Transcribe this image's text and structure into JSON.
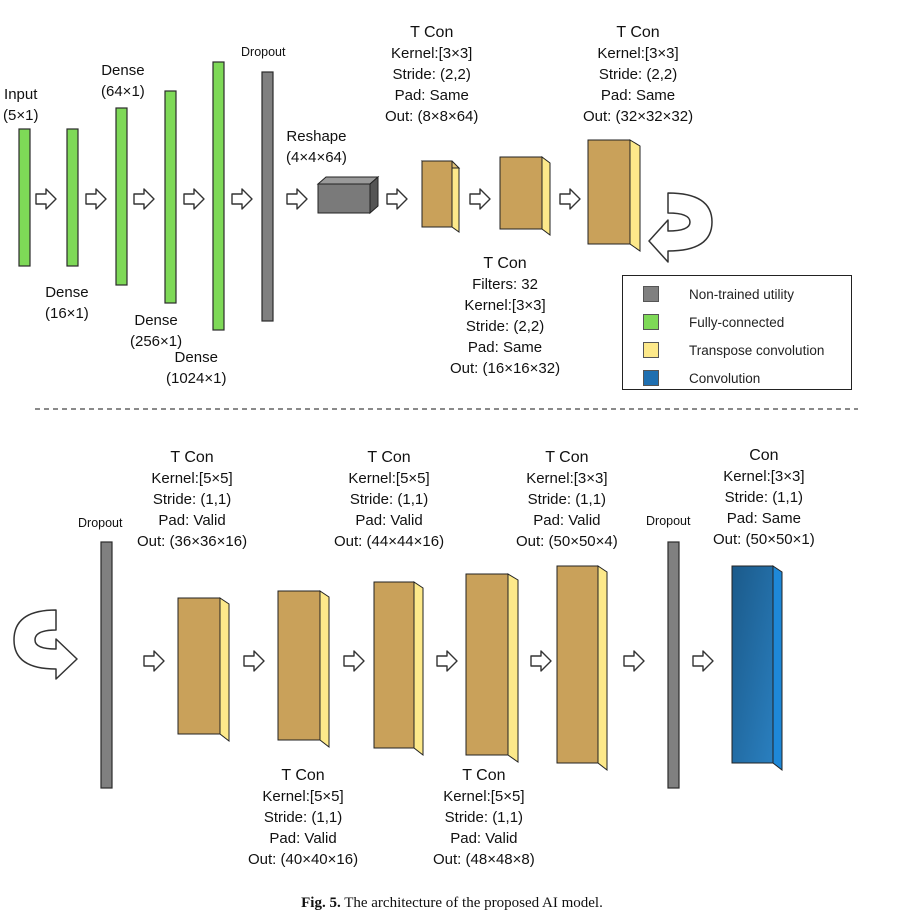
{
  "colors": {
    "fully_connected": "#7ed957",
    "non_trained": "#808080",
    "transpose_face": "#c9a15a",
    "transpose_side": "#fde98a",
    "convolution": "#1f6fb0"
  },
  "top": {
    "input": {
      "name": "Input",
      "dims": "(5×1)"
    },
    "dense1": {
      "name": "Dense",
      "dims": "(16×1)"
    },
    "dense2": {
      "name": "Dense",
      "dims": "(64×1)"
    },
    "dense3": {
      "name": "Dense",
      "dims": "(256×1)"
    },
    "dense4": {
      "name": "Dense",
      "dims": "(1024×1)"
    },
    "dropout": "Dropout",
    "reshape": {
      "name": "Reshape",
      "dims": "(4×4×64)"
    },
    "tcon1": {
      "title": "T Con",
      "kernel": "Kernel:[3×3]",
      "stride": "Stride: (2,2)",
      "pad": "Pad: Same",
      "out": "Out: (8×8×64)"
    },
    "tcon2": {
      "title": "T Con",
      "filters": "Filters: 32",
      "kernel": "Kernel:[3×3]",
      "stride": "Stride: (2,2)",
      "pad": "Pad: Same",
      "out": "Out: (16×16×32)"
    },
    "tcon3": {
      "title": "T Con",
      "kernel": "Kernel:[3×3]",
      "stride": "Stride: (2,2)",
      "pad": "Pad: Same",
      "out": "Out: (32×32×32)"
    }
  },
  "legend": [
    {
      "label": "Non-trained utility",
      "color": "#808080"
    },
    {
      "label": "Fully-connected",
      "color": "#7ed957"
    },
    {
      "label": "Transpose convolution",
      "color": "#fde98a"
    },
    {
      "label": "Convolution",
      "color": "#1f6fb0"
    }
  ],
  "bottom": {
    "dropout1": "Dropout",
    "tcon1": {
      "title": "T Con",
      "kernel": "Kernel:[5×5]",
      "stride": "Stride: (1,1)",
      "pad": "Pad: Valid",
      "out": "Out: (36×36×16)"
    },
    "tcon2": {
      "title": "T Con",
      "kernel": "Kernel:[5×5]",
      "stride": "Stride: (1,1)",
      "pad": "Pad: Valid",
      "out": "Out: (40×40×16)"
    },
    "tcon3": {
      "title": "T Con",
      "kernel": "Kernel:[5×5]",
      "stride": "Stride: (1,1)",
      "pad": "Pad: Valid",
      "out": "Out: (44×44×16)"
    },
    "tcon4": {
      "title": "T Con",
      "kernel": "Kernel:[5×5]",
      "stride": "Stride: (1,1)",
      "pad": "Pad: Valid",
      "out": "Out: (48×48×8)"
    },
    "tcon5": {
      "title": "T Con",
      "kernel": "Kernel:[3×3]",
      "stride": "Stride: (1,1)",
      "pad": "Pad: Valid",
      "out": "Out: (50×50×4)"
    },
    "dropout2": "Dropout",
    "con": {
      "title": "Con",
      "kernel": "Kernel:[3×3]",
      "stride": "Stride: (1,1)",
      "pad": "Pad: Same",
      "out": "Out: (50×50×1)"
    }
  },
  "caption": {
    "label": "Fig. 5.",
    "text": " The architecture of the proposed AI model."
  }
}
